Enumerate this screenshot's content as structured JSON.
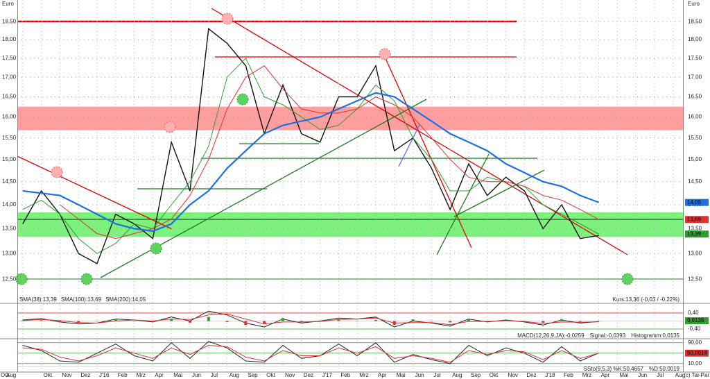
{
  "chart_data": [
    {
      "type": "line",
      "unit_label": "Euro",
      "log_scale": true,
      "grid": true,
      "corner_label": "OG",
      "source": "(c) Tai-Par",
      "annotation": "Kurs:13,36 (-0,03 / -0,22%)",
      "categories": [
        "Aug",
        null,
        "Okt",
        "Nov",
        "Dez",
        "J'16",
        "Feb",
        "Mrz",
        "Apr",
        "Mai",
        "Jun",
        "Jul",
        "Aug",
        "Sep",
        "Okt",
        "Nov",
        "Dez",
        "J'17",
        "Feb",
        "Mrz",
        "Apr",
        "Mai",
        "Jun",
        "Jul",
        "Aug",
        "Sep",
        "Okt",
        "Nov",
        "Dez",
        "J'18",
        "Feb",
        "Mrz",
        "Apr",
        "Mai",
        "Jun",
        "Jul",
        "Aug"
      ],
      "ylim": [
        12.05,
        19.12
      ],
      "yticks": [
        {
          "value": 12.5,
          "label": "12,50"
        },
        {
          "value": 13,
          "label": "13,00"
        },
        {
          "value": 13.5,
          "label": "13,50"
        },
        {
          "value": 14,
          "label": "14,00"
        },
        {
          "value": 14.5,
          "label": "14,50"
        },
        {
          "value": 15,
          "label": "15,00"
        },
        {
          "value": 15.5,
          "label": "15,50"
        },
        {
          "value": 16,
          "label": "16,00"
        },
        {
          "value": 16.5,
          "label": "16,50"
        },
        {
          "value": 17,
          "label": "17,00"
        },
        {
          "value": 17.5,
          "label": "17,50"
        },
        {
          "value": 18,
          "label": "18,00"
        },
        {
          "value": 18.5,
          "label": "18,50"
        }
      ],
      "series": [
        {
          "color": "#111111",
          "width": 1.4,
          "values": [
            null,
            13.6,
            14.3,
            13.8,
            13.0,
            12.8,
            13.8,
            13.6,
            13.3,
            15.4,
            14.3,
            18.3,
            17.9,
            17.3,
            15.6,
            16.8,
            15.6,
            15.4,
            16.5,
            16.5,
            17.3,
            15.2,
            15.5,
            14.8,
            13.9,
            14.9,
            14.2,
            14.6,
            14.3,
            13.5,
            14.0,
            13.3,
            13.36,
            null,
            null,
            null,
            null
          ]
        },
        {
          "name": "SMA(38):13,39",
          "color": "#2e9e2e",
          "width": 1,
          "values": [
            null,
            13.9,
            14.1,
            13.8,
            13.3,
            13.0,
            13.2,
            13.6,
            13.5,
            14.0,
            14.5,
            15.3,
            17.0,
            17.5,
            16.5,
            16.3,
            16.0,
            15.7,
            15.8,
            16.2,
            16.8,
            16.4,
            15.5,
            15.0,
            14.3,
            14.3,
            14.6,
            14.5,
            14.4,
            14.0,
            13.8,
            13.6,
            13.39,
            null,
            null,
            null,
            null
          ]
        },
        {
          "name": "SMA(100):13,69",
          "color": "#e03030",
          "width": 1,
          "values": [
            null,
            null,
            null,
            14.0,
            13.7,
            13.4,
            13.3,
            13.4,
            13.5,
            13.7,
            14.2,
            15.0,
            16.2,
            17.0,
            17.3,
            16.7,
            16.2,
            16.1,
            16.1,
            16.2,
            16.5,
            16.3,
            16.0,
            15.5,
            15.0,
            14.6,
            14.5,
            14.5,
            14.4,
            14.2,
            14.1,
            13.9,
            13.69,
            null,
            null,
            null,
            null
          ]
        },
        {
          "name": "SMA(200):14,05",
          "color": "#1e6fe0",
          "width": 2.2,
          "values": [
            null,
            14.3,
            14.25,
            14.2,
            14.0,
            13.8,
            13.6,
            13.5,
            13.45,
            13.6,
            14.0,
            14.3,
            14.8,
            15.2,
            15.6,
            15.8,
            15.9,
            16.0,
            16.2,
            16.4,
            16.6,
            16.5,
            16.2,
            15.9,
            15.6,
            15.4,
            15.2,
            14.9,
            14.7,
            14.5,
            14.4,
            14.2,
            14.05,
            null,
            null,
            null,
            null
          ]
        }
      ],
      "markers": [
        {
          "value": 14.05,
          "label": "14,05",
          "color": "#1e6fe0"
        },
        {
          "value": 13.69,
          "label": "13,69",
          "color": "#e03030"
        },
        {
          "value": 13.39,
          "label": "13,39",
          "color": "#2e9e2e"
        }
      ]
    },
    {
      "type": "line",
      "ylim": [
        -0.85,
        0.78
      ],
      "yticks": [
        {
          "value": 0.4,
          "label": "0,40"
        },
        {
          "value": -0.4,
          "label": "-0,40"
        }
      ],
      "series": [
        {
          "name": "MACD(12,26,9,JA):-0,0259",
          "color": "#222222",
          "width": 1,
          "values": [
            null,
            0.05,
            0.12,
            -0.05,
            -0.15,
            -0.1,
            0.1,
            0.05,
            -0.05,
            0.2,
            0.0,
            0.5,
            0.3,
            -0.1,
            -0.3,
            0.1,
            -0.1,
            0.0,
            0.15,
            0.1,
            0.2,
            -0.3,
            0.0,
            -0.1,
            -0.25,
            0.1,
            -0.05,
            0.05,
            -0.05,
            -0.2,
            0.05,
            -0.1,
            -0.0259,
            null,
            null,
            null,
            null
          ]
        },
        {
          "name": "Signal:-0,0393",
          "color": "#e03030",
          "width": 1,
          "values": [
            null,
            0.02,
            0.08,
            0.02,
            -0.08,
            -0.1,
            0.0,
            0.05,
            0.0,
            0.1,
            0.08,
            0.3,
            0.35,
            0.1,
            -0.15,
            -0.05,
            -0.05,
            -0.02,
            0.08,
            0.1,
            0.15,
            -0.1,
            -0.08,
            -0.08,
            -0.18,
            -0.02,
            -0.02,
            0.02,
            -0.02,
            -0.12,
            -0.05,
            -0.06,
            -0.0393,
            null,
            null,
            null,
            null
          ]
        },
        {
          "name": "Histogramm:0,0135",
          "kind": "bar",
          "color": "#2e9e2e",
          "values": [
            null,
            0.03,
            0.04,
            -0.07,
            -0.07,
            0.0,
            0.1,
            0.0,
            -0.05,
            0.1,
            -0.08,
            0.2,
            -0.05,
            -0.2,
            -0.15,
            0.15,
            -0.05,
            0.02,
            0.07,
            0.0,
            0.05,
            -0.2,
            0.08,
            -0.02,
            -0.07,
            0.12,
            -0.03,
            0.03,
            -0.03,
            -0.08,
            0.1,
            -0.04,
            0.0135,
            null,
            null,
            null,
            null
          ]
        }
      ],
      "markers": [
        {
          "value": 0.0135,
          "label": "0,0135",
          "color": "#2e9e2e"
        }
      ]
    },
    {
      "type": "line",
      "ylim": [
        -20,
        100
      ],
      "yticks": [
        {
          "value": 90,
          "label": "90,00"
        },
        {
          "value": 50,
          "label": "50,00"
        },
        {
          "value": 10,
          "label": "10,00"
        }
      ],
      "series": [
        {
          "name": "SSto(9,5,3) %K:50,4657",
          "color": "#222222",
          "width": 1,
          "values": [
            null,
            80,
            60,
            20,
            15,
            50,
            85,
            40,
            20,
            90,
            30,
            95,
            70,
            20,
            15,
            80,
            30,
            40,
            85,
            40,
            90,
            15,
            45,
            25,
            10,
            80,
            40,
            70,
            50,
            15,
            75,
            20,
            50.4657,
            null,
            null,
            null,
            null
          ]
        },
        {
          "name": "%D:50,0019",
          "color": "#e03030",
          "width": 1,
          "values": [
            null,
            70,
            65,
            35,
            20,
            40,
            70,
            50,
            30,
            70,
            45,
            80,
            75,
            35,
            20,
            60,
            40,
            40,
            70,
            50,
            75,
            30,
            40,
            30,
            15,
            60,
            45,
            60,
            55,
            25,
            60,
            30,
            50.0019,
            null,
            null,
            null,
            null
          ]
        }
      ],
      "markers": [
        {
          "value": 50.0019,
          "label": "50,0019",
          "color": "#e03030"
        }
      ]
    }
  ]
}
